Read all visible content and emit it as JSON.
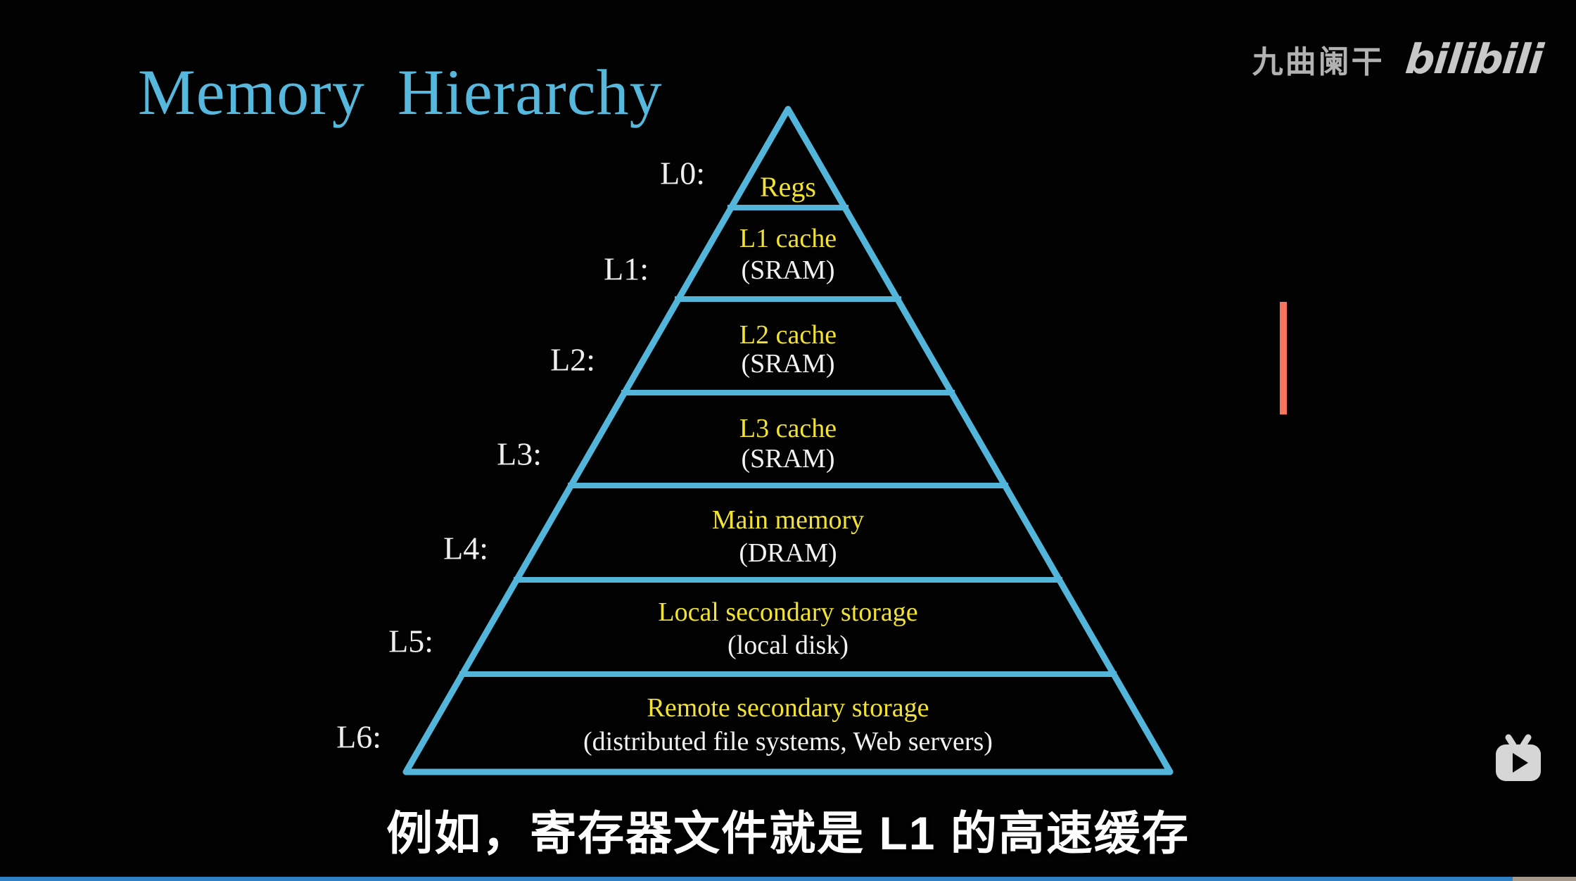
{
  "title": {
    "text": "Memory Hierarchy",
    "color": "#56b8dc"
  },
  "watermark": {
    "username": "九曲阑干",
    "logo_text": "bilibili"
  },
  "pyramid": {
    "outline_color": "#53b5da",
    "level_title_color": "#f2e233",
    "level_subtitle_color": "#f2f2f2",
    "label_color": "#efefef",
    "levels": [
      {
        "label": "L0:",
        "line1": "Regs",
        "line2": ""
      },
      {
        "label": "L1:",
        "line1": "L1 cache",
        "line2": "(SRAM)"
      },
      {
        "label": "L2:",
        "line1": "L2 cache",
        "line2": "(SRAM)"
      },
      {
        "label": "L3:",
        "line1": "L3 cache",
        "line2": "(SRAM)"
      },
      {
        "label": "L4:",
        "line1": "Main memory",
        "line2": "(DRAM)"
      },
      {
        "label": "L5:",
        "line1": "Local secondary storage",
        "line2": "(local disk)"
      },
      {
        "label": "L6:",
        "line1": "Remote secondary storage",
        "line2": "(distributed file systems, Web servers)"
      }
    ]
  },
  "subtitle": {
    "text": "例如，寄存器文件就是 L1 的高速缓存"
  },
  "annotations": {
    "red_marker_color": "#f6765d"
  },
  "player": {
    "progress_percent": 96,
    "played_color": "#2e80c4",
    "remaining_color": "#a5998b",
    "tv_icon": "bilibili-tv-icon"
  }
}
